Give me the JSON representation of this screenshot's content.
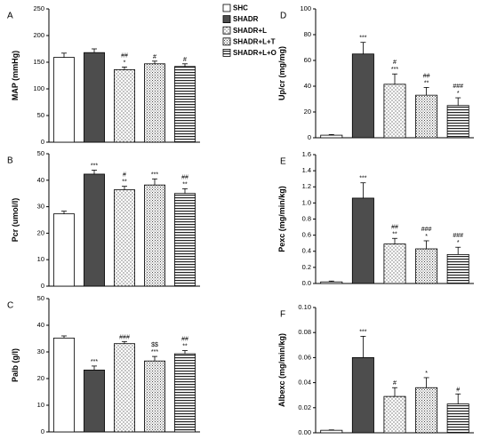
{
  "legend": [
    {
      "name": "SHC",
      "pattern": "white"
    },
    {
      "name": "SHADR",
      "pattern": "dark"
    },
    {
      "name": "SHADR+L",
      "pattern": "dots"
    },
    {
      "name": "SHADR+L+T",
      "pattern": "grid"
    },
    {
      "name": "SHADR+L+O",
      "pattern": "hlines"
    }
  ],
  "colors": {
    "dark": "#4d4d4d",
    "white": "#ffffff",
    "axis": "#000000"
  },
  "chart_data": [
    {
      "panel": "A",
      "type": "bar",
      "ylabel": "MAP (mmHg)",
      "ylim": [
        0,
        250
      ],
      "yticks": [
        0,
        50,
        100,
        150,
        200,
        250
      ],
      "categories": [
        "SHC",
        "SHADR",
        "SHADR+L",
        "SHADR+L+T",
        "SHADR+L+O"
      ],
      "values": [
        159,
        168,
        136,
        147,
        142
      ],
      "errors": [
        8,
        7,
        5,
        5,
        5
      ],
      "annotations": [
        "",
        "",
        "##\n*",
        "#",
        "#"
      ]
    },
    {
      "panel": "B",
      "type": "bar",
      "ylabel": "Pcr (umol/l)",
      "ylim": [
        0,
        50
      ],
      "yticks": [
        0,
        10,
        20,
        30,
        40,
        50
      ],
      "categories": [
        "SHC",
        "SHADR",
        "SHADR+L",
        "SHADR+L+T",
        "SHADR+L+O"
      ],
      "values": [
        27.3,
        42.3,
        36.4,
        38.2,
        35.0
      ],
      "errors": [
        1.0,
        1.5,
        1.3,
        2.3,
        1.8
      ],
      "annotations": [
        "",
        "***",
        "#\n**",
        "***",
        "##\n**"
      ]
    },
    {
      "panel": "C",
      "type": "bar",
      "ylabel": "Palb (g/l)",
      "ylim": [
        0,
        50
      ],
      "yticks": [
        0,
        10,
        20,
        30,
        40,
        50
      ],
      "categories": [
        "SHC",
        "SHADR",
        "SHADR+L",
        "SHADR+L+T",
        "SHADR+L+O"
      ],
      "values": [
        35.2,
        23.2,
        33.1,
        26.6,
        29.3
      ],
      "errors": [
        0.8,
        1.5,
        0.8,
        1.7,
        1.2
      ],
      "annotations": [
        "",
        "***",
        "###",
        "$$\n***",
        "##\n**"
      ]
    },
    {
      "panel": "D",
      "type": "bar",
      "ylabel": "Up/cr (mg/mg)",
      "ylim": [
        0,
        100
      ],
      "yticks": [
        0,
        20,
        40,
        60,
        80,
        100
      ],
      "categories": [
        "SHC",
        "SHADR",
        "SHADR+L",
        "SHADR+L+T",
        "SHADR+L+O"
      ],
      "values": [
        2,
        65,
        41.5,
        33,
        25
      ],
      "errors": [
        0.5,
        9,
        8,
        6,
        6
      ],
      "annotations": [
        "",
        "***",
        "#\n***",
        "##\n**",
        "###\n*"
      ]
    },
    {
      "panel": "E",
      "type": "bar",
      "ylabel": "Pexc (mg/min/kg)",
      "ylim": [
        0,
        1.6
      ],
      "yticks": [
        0,
        0.2,
        0.4,
        0.6,
        0.8,
        1.0,
        1.2,
        1.4,
        1.6
      ],
      "categories": [
        "SHC",
        "SHADR",
        "SHADR+L",
        "SHADR+L+T",
        "SHADR+L+O"
      ],
      "values": [
        0.02,
        1.06,
        0.49,
        0.43,
        0.36
      ],
      "errors": [
        0.01,
        0.19,
        0.07,
        0.1,
        0.09
      ],
      "annotations": [
        "",
        "***",
        "##\n**",
        "###\n*",
        "###\n*"
      ]
    },
    {
      "panel": "F",
      "type": "bar",
      "ylabel": "Albexc (mg/min/kg)",
      "ylim": [
        0,
        0.1
      ],
      "yticks": [
        0,
        0.02,
        0.04,
        0.06,
        0.08,
        0.1
      ],
      "categories": [
        "SHC",
        "SHADR",
        "SHADR+L",
        "SHADR+L+T",
        "SHADR+L+O"
      ],
      "values": [
        0.002,
        0.06,
        0.029,
        0.036,
        0.023
      ],
      "errors": [
        0.0003,
        0.017,
        0.007,
        0.008,
        0.008
      ],
      "annotations": [
        "",
        "***",
        "#",
        "*",
        "#"
      ]
    }
  ]
}
